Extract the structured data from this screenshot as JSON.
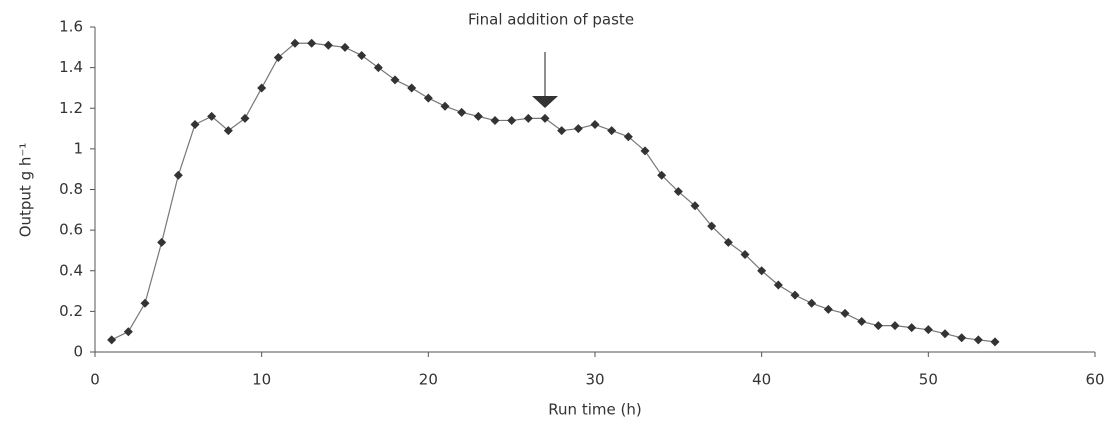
{
  "chart_data": {
    "type": "line",
    "xlabel": "Run time (h)",
    "ylabel": "Output g h⁻¹",
    "annotation": {
      "text": "Final addition of paste",
      "x": 27
    },
    "x": [
      1,
      2,
      3,
      4,
      5,
      6,
      7,
      8,
      9,
      10,
      11,
      12,
      13,
      14,
      15,
      16,
      17,
      18,
      19,
      20,
      21,
      22,
      23,
      24,
      25,
      26,
      27,
      28,
      29,
      30,
      31,
      32,
      33,
      34,
      35,
      36,
      37,
      38,
      39,
      40,
      41,
      42,
      43,
      44,
      45,
      46,
      47,
      48,
      49,
      50,
      51,
      52,
      53,
      54
    ],
    "series": [
      {
        "color": "#333333",
        "values": [
          0.06,
          0.1,
          0.24,
          0.54,
          0.87,
          1.12,
          1.16,
          1.09,
          1.15,
          1.3,
          1.45,
          1.52,
          1.52,
          1.51,
          1.5,
          1.46,
          1.4,
          1.34,
          1.3,
          1.25,
          1.21,
          1.18,
          1.16,
          1.14,
          1.14,
          1.15,
          1.15,
          1.09,
          1.1,
          1.12,
          1.09,
          1.06,
          0.99,
          0.87,
          0.79,
          0.72,
          0.62,
          0.54,
          0.48,
          0.4,
          0.33,
          0.28,
          0.24,
          0.21,
          0.19,
          0.15,
          0.13,
          0.13,
          0.12,
          0.11,
          0.09,
          0.07,
          0.06,
          0.05
        ]
      }
    ],
    "xlim": [
      0,
      60
    ],
    "xticks": [
      0,
      10,
      20,
      30,
      40,
      50,
      60
    ],
    "ylim": [
      0,
      1.6
    ],
    "yticks": [
      0,
      0.2,
      0.4,
      0.6,
      0.8,
      1,
      1.2,
      1.4,
      1.6
    ],
    "grid": false
  }
}
